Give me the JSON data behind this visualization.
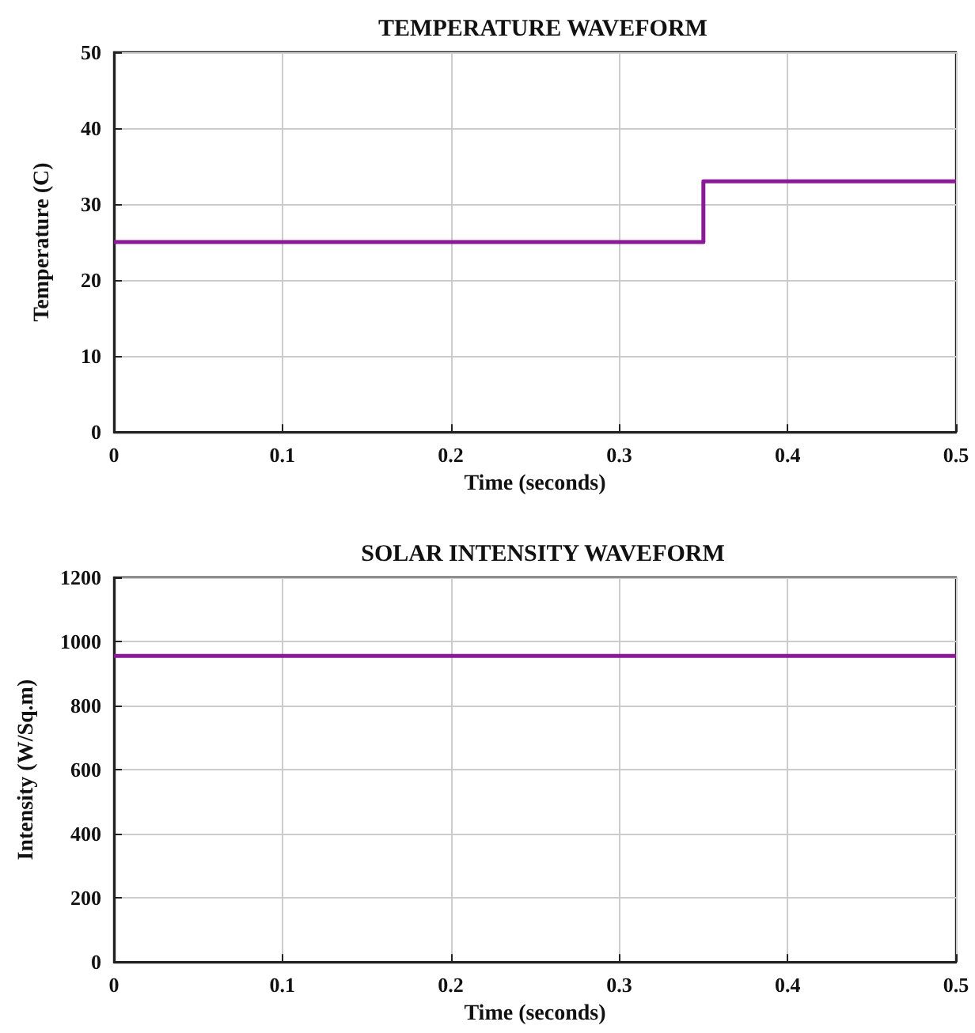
{
  "chart_data": [
    {
      "type": "step",
      "title": "TEMPERATURE WAVEFORM",
      "xlabel": "Time (seconds)",
      "ylabel": "Temperature (C)",
      "x": [
        0,
        0.35,
        0.5
      ],
      "xlim": [
        0,
        0.5
      ],
      "xticks": [
        0,
        0.1,
        0.2,
        0.3,
        0.4,
        0.5
      ],
      "ylim": [
        0,
        50
      ],
      "yticks": [
        0,
        10,
        20,
        30,
        40,
        50
      ],
      "grid": true,
      "series": [
        {
          "color": "#8b1a96",
          "values": [
            25,
            33,
            33
          ]
        }
      ]
    },
    {
      "type": "line",
      "title": "SOLAR INTENSITY WAVEFORM",
      "xlabel": "Time (seconds)",
      "ylabel": "Intensity (W/Sq.m)",
      "x": [
        0,
        0.5
      ],
      "xlim": [
        0,
        0.5
      ],
      "xticks": [
        0,
        0.1,
        0.2,
        0.3,
        0.4,
        0.5
      ],
      "ylim": [
        0,
        1200
      ],
      "yticks": [
        0,
        200,
        400,
        600,
        800,
        1000,
        1200
      ],
      "grid": true,
      "series": [
        {
          "color": "#8b1a96",
          "values": [
            955,
            955
          ]
        }
      ]
    }
  ]
}
